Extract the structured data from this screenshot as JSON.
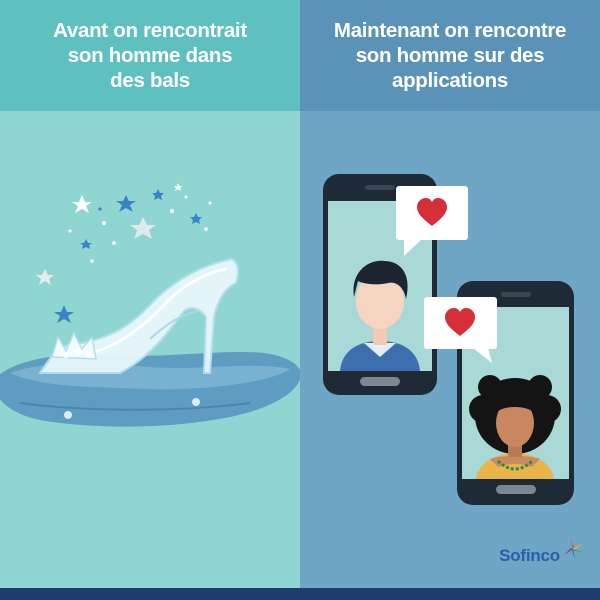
{
  "left_panel": {
    "title": "Avant on rencontrait\nson homme dans\ndes bals",
    "illustration": "glass-slipper-on-cushion",
    "background": "#8fd5d1",
    "header_color": "#5fc0c0"
  },
  "right_panel": {
    "title": "Maintenant on rencontre\nson homme sur des\napplications",
    "illustration": "two-phones-with-heart-messages",
    "background": "#6fa6c6",
    "header_color": "#5b93b8"
  },
  "logo": {
    "text": "Sofinco",
    "color": "#2a5ea8"
  },
  "colors": {
    "heart": "#d62f3a",
    "bottom_bar": "#1f3c6e"
  }
}
